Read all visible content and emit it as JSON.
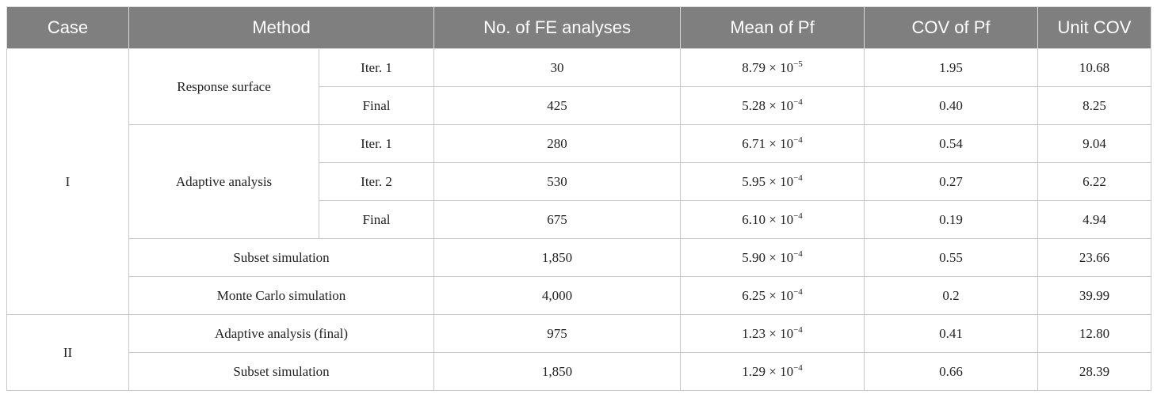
{
  "header": [
    "Case",
    "Method",
    "No. of FE analyses",
    "Mean of Pf",
    "COV of Pf",
    "Unit COV"
  ],
  "cases": [
    {
      "case": "I",
      "methods": [
        {
          "name": "Response surface",
          "rows": [
            {
              "label": "Iter. 1",
              "fe": "30",
              "mean": {
                "base": "8.79 × 10",
                "exp": "−5"
              },
              "cov": "1.95",
              "unit": "10.68"
            },
            {
              "label": "Final",
              "fe": "425",
              "mean": {
                "base": "5.28 × 10",
                "exp": "−4"
              },
              "cov": "0.40",
              "unit": "8.25"
            }
          ]
        },
        {
          "name": "Adaptive analysis",
          "rows": [
            {
              "label": "Iter. 1",
              "fe": "280",
              "mean": {
                "base": "6.71 × 10",
                "exp": "−4"
              },
              "cov": "0.54",
              "unit": "9.04"
            },
            {
              "label": "Iter. 2",
              "fe": "530",
              "mean": {
                "base": "5.95 × 10",
                "exp": "−4"
              },
              "cov": "0.27",
              "unit": "6.22"
            },
            {
              "label": "Final",
              "fe": "675",
              "mean": {
                "base": "6.10 × 10",
                "exp": "−4"
              },
              "cov": "0.19",
              "unit": "4.94"
            }
          ]
        },
        {
          "name": "Subset simulation",
          "rows": [
            {
              "fe": "1,850",
              "mean": {
                "base": "5.90 × 10",
                "exp": "−4"
              },
              "cov": "0.55",
              "unit": "23.66"
            }
          ]
        },
        {
          "name": "Monte Carlo simulation",
          "rows": [
            {
              "fe": "4,000",
              "mean": {
                "base": "6.25 × 10",
                "exp": "−4"
              },
              "cov": "0.2",
              "unit": "39.99"
            }
          ]
        }
      ]
    },
    {
      "case": "II",
      "methods": [
        {
          "name": "Adaptive analysis (final)",
          "rows": [
            {
              "fe": "975",
              "mean": {
                "base": "1.23 × 10",
                "exp": "−4"
              },
              "cov": "0.41",
              "unit": "12.80"
            }
          ]
        },
        {
          "name": "Subset simulation",
          "rows": [
            {
              "fe": "1,850",
              "mean": {
                "base": "1.29 × 10",
                "exp": "−4"
              },
              "cov": "0.66",
              "unit": "28.39"
            }
          ]
        }
      ]
    }
  ]
}
